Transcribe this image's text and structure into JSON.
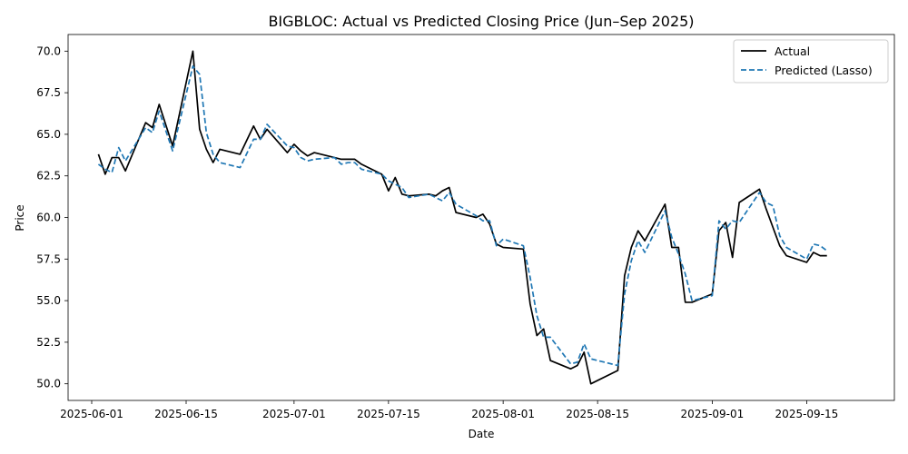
{
  "chart_data": {
    "type": "line",
    "title": "BIGBLOC: Actual vs Predicted Closing Price (Jun–Sep 2025)",
    "xlabel": "Date",
    "ylabel": "Price",
    "x_range_days": [
      -3.5,
      119
    ],
    "ylim": [
      49.0,
      71.0
    ],
    "x_ticks": [
      {
        "day": 0,
        "label": "2025-06-01"
      },
      {
        "day": 14,
        "label": "2025-06-15"
      },
      {
        "day": 30,
        "label": "2025-07-01"
      },
      {
        "day": 44,
        "label": "2025-07-15"
      },
      {
        "day": 61,
        "label": "2025-08-01"
      },
      {
        "day": 75,
        "label": "2025-08-15"
      },
      {
        "day": 92,
        "label": "2025-09-01"
      },
      {
        "day": 106,
        "label": "2025-09-15"
      }
    ],
    "y_ticks": [
      50.0,
      52.5,
      55.0,
      57.5,
      60.0,
      62.5,
      65.0,
      67.5,
      70.0
    ],
    "y_tick_labels": [
      "50.0",
      "52.5",
      "55.0",
      "57.5",
      "60.0",
      "62.5",
      "65.0",
      "67.5",
      "70.0"
    ],
    "legend_position": "top-right",
    "series": [
      {
        "name": "Actual",
        "color": "#000000",
        "dash": "solid",
        "points": [
          [
            1,
            63.8
          ],
          [
            2,
            62.6
          ],
          [
            3,
            63.6
          ],
          [
            4,
            63.6
          ],
          [
            5,
            62.8
          ],
          [
            8,
            65.7
          ],
          [
            9,
            65.4
          ],
          [
            10,
            66.8
          ],
          [
            12,
            64.3
          ],
          [
            15,
            70.0
          ],
          [
            16,
            65.3
          ],
          [
            17,
            64.1
          ],
          [
            18,
            63.3
          ],
          [
            19,
            64.1
          ],
          [
            22,
            63.8
          ],
          [
            24,
            65.5
          ],
          [
            25,
            64.7
          ],
          [
            26,
            65.3
          ],
          [
            29,
            63.9
          ],
          [
            30,
            64.4
          ],
          [
            31,
            64.0
          ],
          [
            32,
            63.7
          ],
          [
            33,
            63.9
          ],
          [
            36,
            63.6
          ],
          [
            37,
            63.5
          ],
          [
            38,
            63.5
          ],
          [
            39,
            63.5
          ],
          [
            40,
            63.2
          ],
          [
            43,
            62.6
          ],
          [
            44,
            61.6
          ],
          [
            45,
            62.4
          ],
          [
            46,
            61.4
          ],
          [
            47,
            61.3
          ],
          [
            50,
            61.4
          ],
          [
            51,
            61.3
          ],
          [
            52,
            61.6
          ],
          [
            53,
            61.8
          ],
          [
            54,
            60.3
          ],
          [
            57,
            60.0
          ],
          [
            58,
            60.2
          ],
          [
            59,
            59.6
          ],
          [
            60,
            58.4
          ],
          [
            61,
            58.2
          ],
          [
            64,
            58.1
          ],
          [
            65,
            54.8
          ],
          [
            66,
            52.9
          ],
          [
            67,
            53.3
          ],
          [
            68,
            51.4
          ],
          [
            71,
            50.9
          ],
          [
            72,
            51.1
          ],
          [
            73,
            51.9
          ],
          [
            74,
            50.0
          ],
          [
            78,
            50.8
          ],
          [
            79,
            56.5
          ],
          [
            80,
            58.2
          ],
          [
            81,
            59.2
          ],
          [
            82,
            58.6
          ],
          [
            85,
            60.8
          ],
          [
            86,
            58.2
          ],
          [
            87,
            58.2
          ],
          [
            88,
            54.9
          ],
          [
            89,
            54.9
          ],
          [
            92,
            55.4
          ],
          [
            93,
            59.2
          ],
          [
            94,
            59.7
          ],
          [
            95,
            57.6
          ],
          [
            96,
            60.9
          ],
          [
            99,
            61.7
          ],
          [
            100,
            60.5
          ],
          [
            101,
            59.4
          ],
          [
            102,
            58.3
          ],
          [
            103,
            57.7
          ],
          [
            106,
            57.3
          ],
          [
            107,
            57.9
          ],
          [
            108,
            57.7
          ],
          [
            109,
            57.7
          ]
        ]
      },
      {
        "name": "Predicted (Lasso)",
        "color": "#1f77b4",
        "dash": "dashed",
        "points": [
          [
            1,
            63.2
          ],
          [
            2,
            62.9
          ],
          [
            3,
            62.7
          ],
          [
            4,
            64.2
          ],
          [
            5,
            63.4
          ],
          [
            8,
            65.4
          ],
          [
            9,
            65.1
          ],
          [
            10,
            66.4
          ],
          [
            12,
            64.0
          ],
          [
            15,
            69.1
          ],
          [
            16,
            68.6
          ],
          [
            17,
            65.1
          ],
          [
            18,
            63.8
          ],
          [
            19,
            63.3
          ],
          [
            22,
            63.0
          ],
          [
            24,
            64.7
          ],
          [
            25,
            64.7
          ],
          [
            26,
            65.6
          ],
          [
            29,
            64.3
          ],
          [
            30,
            64.2
          ],
          [
            31,
            63.6
          ],
          [
            32,
            63.4
          ],
          [
            33,
            63.5
          ],
          [
            36,
            63.6
          ],
          [
            37,
            63.2
          ],
          [
            38,
            63.3
          ],
          [
            39,
            63.3
          ],
          [
            40,
            62.9
          ],
          [
            43,
            62.6
          ],
          [
            44,
            62.2
          ],
          [
            45,
            62.0
          ],
          [
            46,
            61.8
          ],
          [
            47,
            61.2
          ],
          [
            50,
            61.4
          ],
          [
            51,
            61.2
          ],
          [
            52,
            61.0
          ],
          [
            53,
            61.5
          ],
          [
            54,
            60.8
          ],
          [
            57,
            60.1
          ],
          [
            58,
            59.8
          ],
          [
            59,
            59.8
          ],
          [
            60,
            58.3
          ],
          [
            61,
            58.7
          ],
          [
            64,
            58.3
          ],
          [
            65,
            56.4
          ],
          [
            66,
            54.1
          ],
          [
            67,
            52.8
          ],
          [
            68,
            52.8
          ],
          [
            71,
            51.2
          ],
          [
            72,
            51.3
          ],
          [
            73,
            52.4
          ],
          [
            74,
            51.5
          ],
          [
            78,
            51.1
          ],
          [
            79,
            55.4
          ],
          [
            80,
            57.4
          ],
          [
            81,
            58.6
          ],
          [
            82,
            57.9
          ],
          [
            85,
            60.4
          ],
          [
            86,
            58.8
          ],
          [
            87,
            57.8
          ],
          [
            88,
            56.6
          ],
          [
            89,
            55.0
          ],
          [
            92,
            55.3
          ],
          [
            93,
            59.8
          ],
          [
            94,
            59.3
          ],
          [
            95,
            59.8
          ],
          [
            96,
            59.7
          ],
          [
            99,
            61.5
          ],
          [
            100,
            60.9
          ],
          [
            101,
            60.7
          ],
          [
            102,
            58.9
          ],
          [
            103,
            58.2
          ],
          [
            106,
            57.5
          ],
          [
            107,
            58.4
          ],
          [
            108,
            58.3
          ],
          [
            109,
            58.0
          ]
        ]
      }
    ]
  }
}
